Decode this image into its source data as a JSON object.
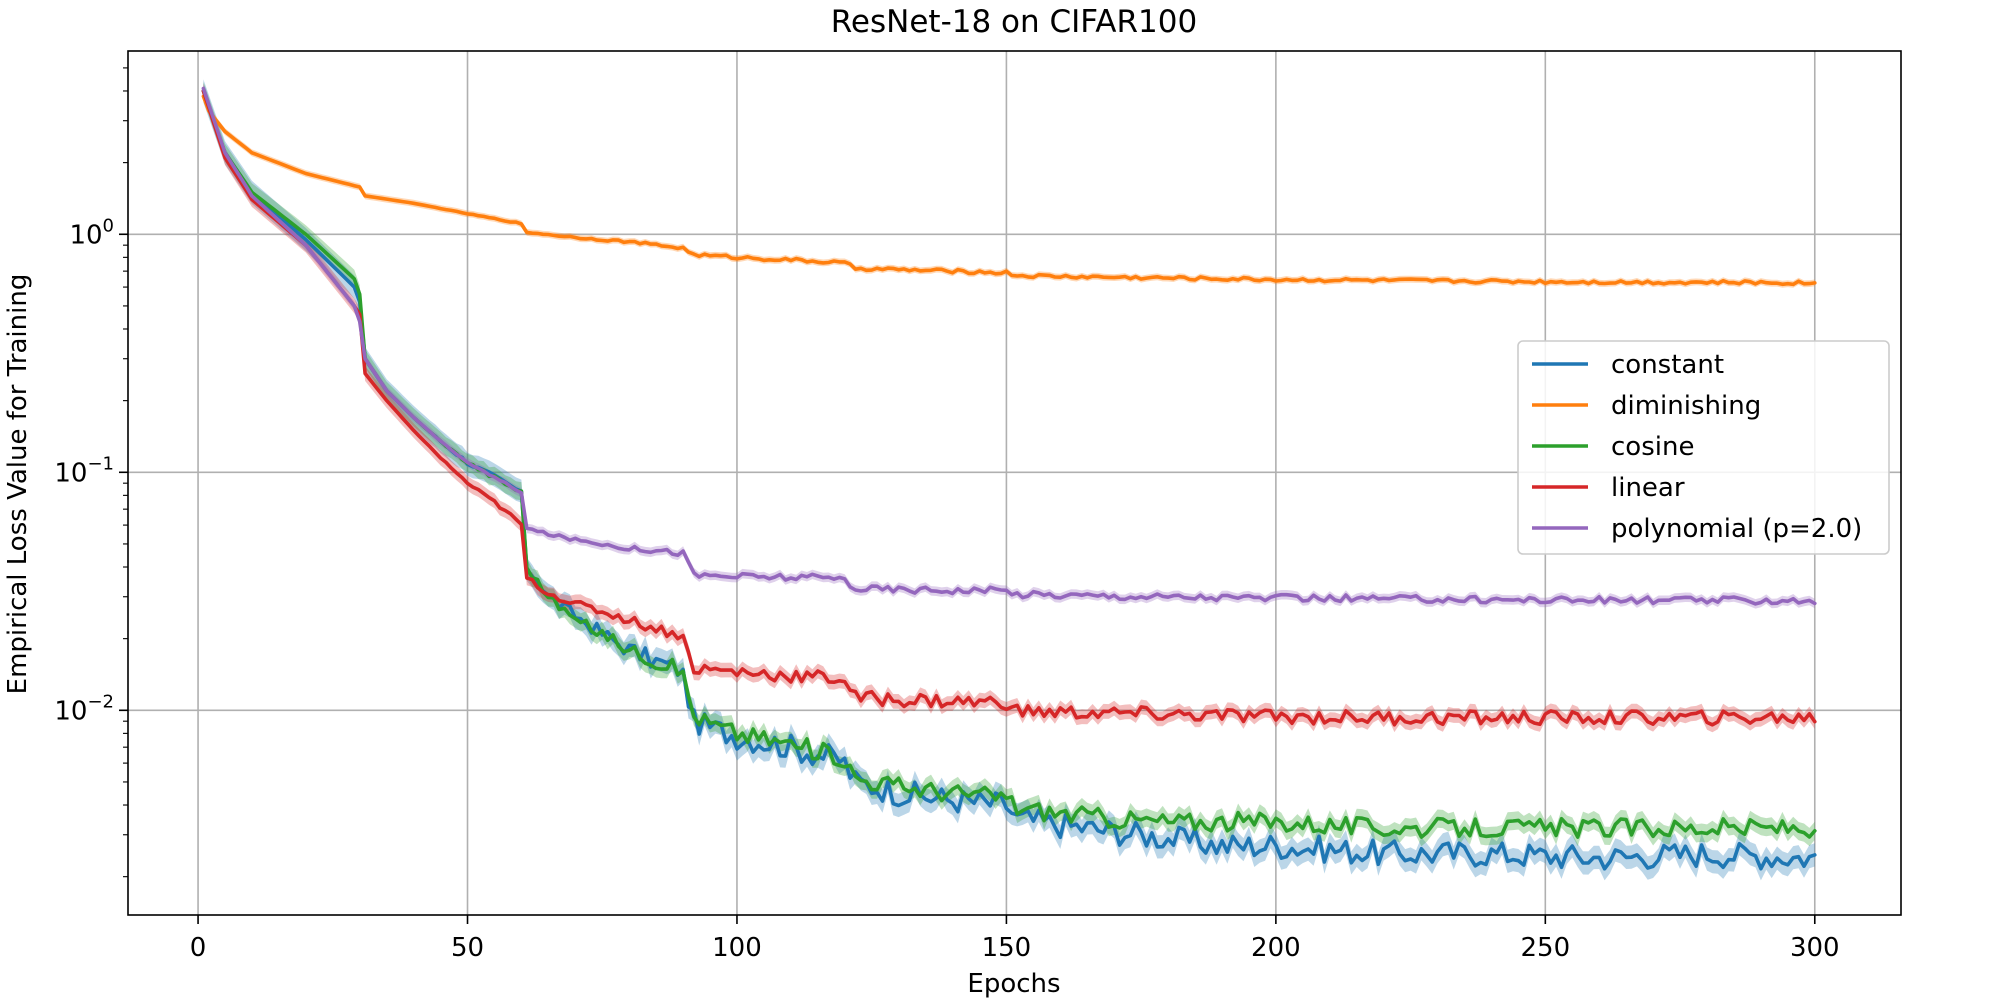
{
  "chart_data": {
    "type": "line",
    "title": "ResNet-18 on CIFAR100",
    "xlabel": "Epochs",
    "ylabel": "Empirical Loss Value for Training",
    "xlim": [
      -13,
      316
    ],
    "ylim_log10": [
      -2.86,
      0.77
    ],
    "yscale": "log",
    "grid": true,
    "legend_position": "center-right",
    "x_ticks": [
      0,
      50,
      100,
      150,
      200,
      250,
      300
    ],
    "y_ticks": [
      {
        "value": 1,
        "base": "10",
        "exp": "0"
      },
      {
        "value": 0.1,
        "base": "10",
        "exp": "−1"
      },
      {
        "value": 0.01,
        "base": "10",
        "exp": "−2"
      }
    ],
    "series": [
      {
        "name": "constant",
        "color": "#1f77b4",
        "noise": 0.11,
        "points": [
          [
            1,
            4.0
          ],
          [
            5,
            2.2
          ],
          [
            10,
            1.5
          ],
          [
            20,
            0.95
          ],
          [
            29,
            0.6
          ],
          [
            30,
            0.52
          ],
          [
            31,
            0.3
          ],
          [
            35,
            0.22
          ],
          [
            40,
            0.17
          ],
          [
            45,
            0.135
          ],
          [
            50,
            0.11
          ],
          [
            55,
            0.095
          ],
          [
            59,
            0.085
          ],
          [
            60,
            0.08
          ],
          [
            61,
            0.04
          ],
          [
            65,
            0.03
          ],
          [
            70,
            0.025
          ],
          [
            75,
            0.021
          ],
          [
            80,
            0.018
          ],
          [
            85,
            0.016
          ],
          [
            89,
            0.015
          ],
          [
            90,
            0.014
          ],
          [
            92,
            0.009
          ],
          [
            95,
            0.0085
          ],
          [
            100,
            0.0078
          ],
          [
            110,
            0.007
          ],
          [
            119,
            0.0062
          ],
          [
            120,
            0.006
          ],
          [
            122,
            0.005
          ],
          [
            130,
            0.0045
          ],
          [
            140,
            0.0042
          ],
          [
            150,
            0.004
          ],
          [
            152,
            0.0035
          ],
          [
            160,
            0.0033
          ],
          [
            170,
            0.0031
          ],
          [
            180,
            0.0029
          ],
          [
            190,
            0.0027
          ],
          [
            200,
            0.0027
          ],
          [
            210,
            0.0026
          ],
          [
            220,
            0.0025
          ],
          [
            240,
            0.0025
          ],
          [
            260,
            0.0024
          ],
          [
            280,
            0.0025
          ],
          [
            300,
            0.0024
          ]
        ]
      },
      {
        "name": "diminishing",
        "color": "#ff7f0e",
        "noise": 0.015,
        "points": [
          [
            1,
            3.8
          ],
          [
            2,
            3.3
          ],
          [
            5,
            2.7
          ],
          [
            10,
            2.2
          ],
          [
            20,
            1.8
          ],
          [
            29,
            1.6
          ],
          [
            30,
            1.58
          ],
          [
            31,
            1.45
          ],
          [
            40,
            1.35
          ],
          [
            50,
            1.22
          ],
          [
            59,
            1.12
          ],
          [
            60,
            1.1
          ],
          [
            61,
            1.02
          ],
          [
            70,
            0.97
          ],
          [
            80,
            0.93
          ],
          [
            89,
            0.88
          ],
          [
            90,
            0.875
          ],
          [
            92,
            0.82
          ],
          [
            100,
            0.8
          ],
          [
            110,
            0.78
          ],
          [
            119,
            0.76
          ],
          [
            120,
            0.755
          ],
          [
            122,
            0.72
          ],
          [
            130,
            0.71
          ],
          [
            140,
            0.7
          ],
          [
            149,
            0.69
          ],
          [
            150,
            0.69
          ],
          [
            152,
            0.67
          ],
          [
            160,
            0.665
          ],
          [
            170,
            0.66
          ],
          [
            180,
            0.655
          ],
          [
            190,
            0.65
          ],
          [
            200,
            0.645
          ],
          [
            220,
            0.64
          ],
          [
            240,
            0.635
          ],
          [
            260,
            0.63
          ],
          [
            280,
            0.628
          ],
          [
            300,
            0.625
          ]
        ]
      },
      {
        "name": "cosine",
        "color": "#2ca02c",
        "noise": 0.08,
        "points": [
          [
            1,
            4.0
          ],
          [
            5,
            2.2
          ],
          [
            10,
            1.5
          ],
          [
            20,
            1.0
          ],
          [
            29,
            0.65
          ],
          [
            30,
            0.56
          ],
          [
            31,
            0.3
          ],
          [
            35,
            0.22
          ],
          [
            40,
            0.17
          ],
          [
            45,
            0.135
          ],
          [
            50,
            0.11
          ],
          [
            55,
            0.095
          ],
          [
            59,
            0.085
          ],
          [
            60,
            0.082
          ],
          [
            61,
            0.04
          ],
          [
            65,
            0.03
          ],
          [
            70,
            0.024
          ],
          [
            75,
            0.021
          ],
          [
            80,
            0.018
          ],
          [
            85,
            0.016
          ],
          [
            89,
            0.015
          ],
          [
            90,
            0.014
          ],
          [
            92,
            0.0095
          ],
          [
            95,
            0.0088
          ],
          [
            100,
            0.008
          ],
          [
            110,
            0.0072
          ],
          [
            119,
            0.0064
          ],
          [
            120,
            0.0062
          ],
          [
            122,
            0.0052
          ],
          [
            130,
            0.0048
          ],
          [
            140,
            0.0045
          ],
          [
            150,
            0.0043
          ],
          [
            152,
            0.0039
          ],
          [
            160,
            0.0037
          ],
          [
            170,
            0.0035
          ],
          [
            180,
            0.0034
          ],
          [
            190,
            0.0034
          ],
          [
            200,
            0.0034
          ],
          [
            210,
            0.0033
          ],
          [
            220,
            0.0032
          ],
          [
            240,
            0.0032
          ],
          [
            260,
            0.0032
          ],
          [
            280,
            0.0032
          ],
          [
            300,
            0.0032
          ]
        ]
      },
      {
        "name": "linear",
        "color": "#d62728",
        "noise": 0.06,
        "points": [
          [
            1,
            4.0
          ],
          [
            5,
            2.1
          ],
          [
            10,
            1.4
          ],
          [
            20,
            0.9
          ],
          [
            29,
            0.5
          ],
          [
            30,
            0.46
          ],
          [
            31,
            0.26
          ],
          [
            35,
            0.2
          ],
          [
            40,
            0.15
          ],
          [
            45,
            0.115
          ],
          [
            50,
            0.09
          ],
          [
            55,
            0.075
          ],
          [
            59,
            0.063
          ],
          [
            60,
            0.06
          ],
          [
            61,
            0.036
          ],
          [
            65,
            0.031
          ],
          [
            70,
            0.028
          ],
          [
            75,
            0.026
          ],
          [
            80,
            0.024
          ],
          [
            85,
            0.022
          ],
          [
            89,
            0.021
          ],
          [
            90,
            0.02
          ],
          [
            92,
            0.015
          ],
          [
            95,
            0.0148
          ],
          [
            100,
            0.0145
          ],
          [
            110,
            0.014
          ],
          [
            119,
            0.0136
          ],
          [
            120,
            0.0135
          ],
          [
            122,
            0.0113
          ],
          [
            130,
            0.0111
          ],
          [
            140,
            0.0109
          ],
          [
            149,
            0.0108
          ],
          [
            150,
            0.0108
          ],
          [
            152,
            0.0099
          ],
          [
            160,
            0.0098
          ],
          [
            170,
            0.0097
          ],
          [
            180,
            0.0096
          ],
          [
            190,
            0.0095
          ],
          [
            200,
            0.0094
          ],
          [
            220,
            0.0093
          ],
          [
            240,
            0.0093
          ],
          [
            260,
            0.0093
          ],
          [
            280,
            0.0093
          ],
          [
            300,
            0.0093
          ]
        ]
      },
      {
        "name": "polynomial (p=2.0)",
        "color": "#9467bd",
        "noise": 0.03,
        "points": [
          [
            1,
            4.1
          ],
          [
            5,
            2.2
          ],
          [
            10,
            1.45
          ],
          [
            20,
            0.9
          ],
          [
            29,
            0.5
          ],
          [
            30,
            0.43
          ],
          [
            31,
            0.3
          ],
          [
            35,
            0.22
          ],
          [
            40,
            0.17
          ],
          [
            45,
            0.135
          ],
          [
            50,
            0.11
          ],
          [
            55,
            0.095
          ],
          [
            59,
            0.085
          ],
          [
            60,
            0.082
          ],
          [
            61,
            0.058
          ],
          [
            65,
            0.055
          ],
          [
            70,
            0.052
          ],
          [
            75,
            0.05
          ],
          [
            80,
            0.048
          ],
          [
            85,
            0.047
          ],
          [
            89,
            0.046
          ],
          [
            90,
            0.046
          ],
          [
            92,
            0.037
          ],
          [
            95,
            0.0368
          ],
          [
            100,
            0.0365
          ],
          [
            110,
            0.0362
          ],
          [
            119,
            0.0358
          ],
          [
            120,
            0.0355
          ],
          [
            122,
            0.0325
          ],
          [
            130,
            0.0322
          ],
          [
            140,
            0.032
          ],
          [
            149,
            0.0318
          ],
          [
            150,
            0.0318
          ],
          [
            152,
            0.0308
          ],
          [
            160,
            0.0305
          ],
          [
            170,
            0.0302
          ],
          [
            180,
            0.03
          ],
          [
            190,
            0.0298
          ],
          [
            200,
            0.0296
          ],
          [
            220,
            0.0294
          ],
          [
            240,
            0.0292
          ],
          [
            260,
            0.029
          ],
          [
            280,
            0.029
          ],
          [
            300,
            0.0289
          ]
        ]
      }
    ]
  }
}
